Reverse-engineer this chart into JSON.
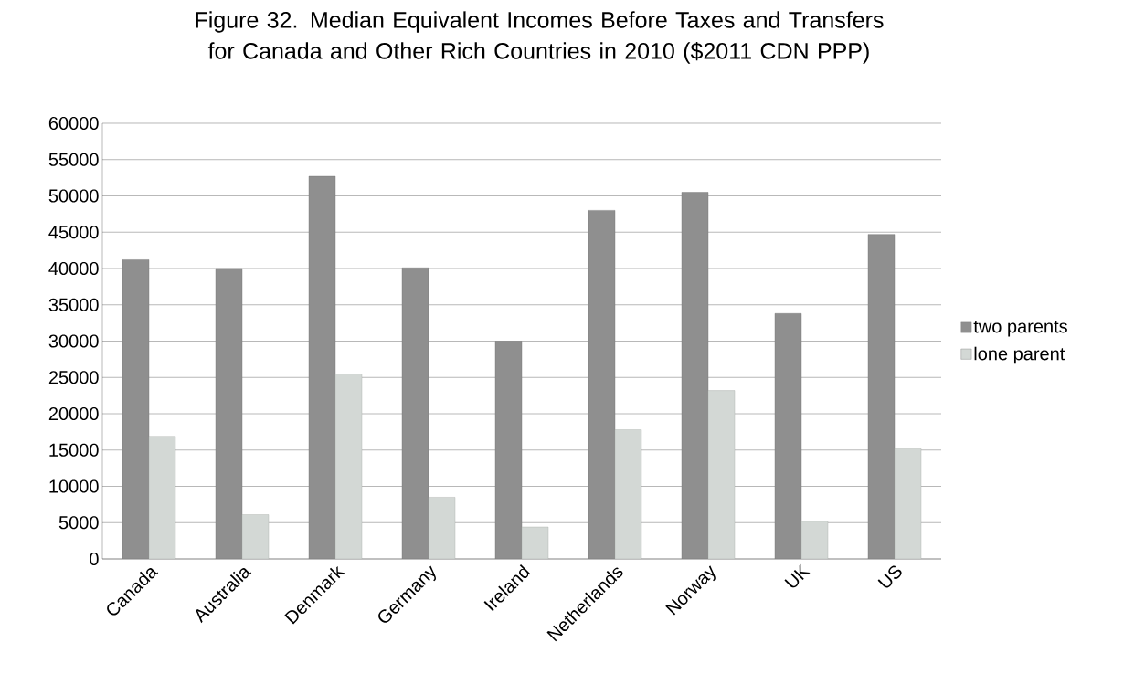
{
  "chart_data": {
    "type": "bar",
    "title": "Figure 32.  Median Equivalent Incomes Before Taxes and Transfers for Canada and Other Rich Countries in 2010 ($2011 CDN PPP)",
    "categories": [
      "Canada",
      "Australia",
      "Denmark",
      "Germany",
      "Ireland",
      "Netherlands",
      "Norway",
      "UK",
      "US"
    ],
    "series": [
      {
        "name": "two parents",
        "color": "#8f8f8f",
        "values": [
          41200,
          40000,
          52700,
          40100,
          30000,
          48000,
          50500,
          33800,
          44700
        ]
      },
      {
        "name": "lone parent",
        "color": "#d3d8d5",
        "values": [
          16900,
          6100,
          25500,
          8500,
          4400,
          17800,
          23200,
          5200,
          15200
        ]
      }
    ],
    "ylim": [
      0,
      60000
    ],
    "yticks": [
      0,
      5000,
      10000,
      15000,
      20000,
      25000,
      30000,
      35000,
      40000,
      45000,
      50000,
      55000,
      60000
    ],
    "grid": "y",
    "legend": "right"
  }
}
